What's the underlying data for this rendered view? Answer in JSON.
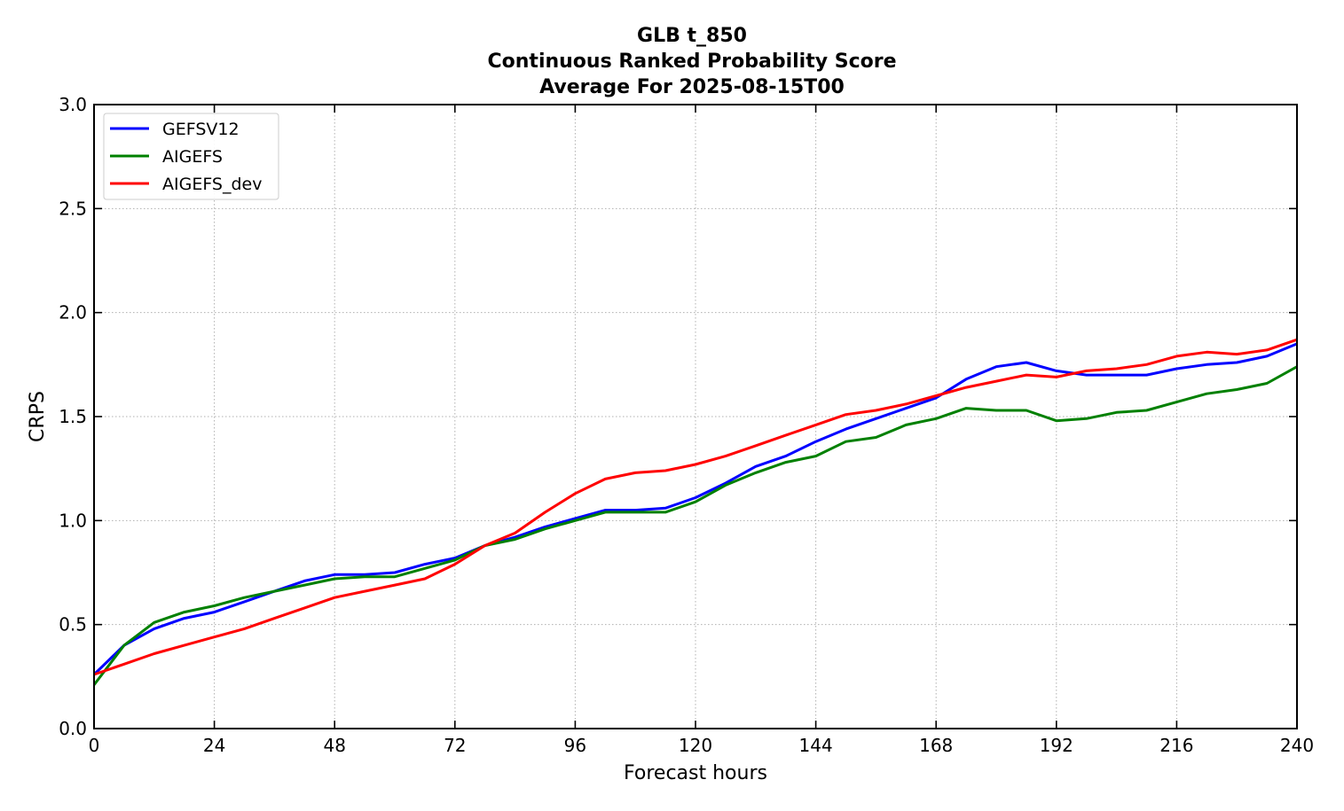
{
  "chart_data": {
    "type": "line",
    "title_lines": [
      "GLB t_850",
      "Continuous Ranked Probability Score",
      "Average For 2025-08-15T00"
    ],
    "xlabel": "Forecast hours",
    "ylabel": "CRPS",
    "xlim": [
      0,
      240
    ],
    "ylim": [
      0.0,
      3.0
    ],
    "xticks": [
      0,
      24,
      48,
      72,
      96,
      120,
      144,
      168,
      192,
      216,
      240
    ],
    "yticks": [
      0.0,
      0.5,
      1.0,
      1.5,
      2.0,
      2.5,
      3.0
    ],
    "ytick_labels": [
      "0.0",
      "0.5",
      "1.0",
      "1.5",
      "2.0",
      "2.5",
      "3.0"
    ],
    "grid": true,
    "legend_position": "top-left",
    "x": [
      0,
      6,
      12,
      18,
      24,
      30,
      36,
      42,
      48,
      54,
      60,
      66,
      72,
      78,
      84,
      90,
      96,
      102,
      108,
      114,
      120,
      126,
      132,
      138,
      144,
      150,
      156,
      162,
      168,
      174,
      180,
      186,
      192,
      198,
      204,
      210,
      216,
      222,
      228,
      234,
      240
    ],
    "series": [
      {
        "name": "GEFSV12",
        "color": "#0000ff",
        "values": [
          0.26,
          0.4,
          0.48,
          0.53,
          0.56,
          0.61,
          0.66,
          0.71,
          0.74,
          0.74,
          0.75,
          0.79,
          0.82,
          0.88,
          0.92,
          0.97,
          1.01,
          1.05,
          1.05,
          1.06,
          1.11,
          1.18,
          1.26,
          1.31,
          1.38,
          1.44,
          1.49,
          1.54,
          1.59,
          1.68,
          1.74,
          1.76,
          1.72,
          1.7,
          1.7,
          1.7,
          1.73,
          1.75,
          1.76,
          1.79,
          1.85
        ]
      },
      {
        "name": "AIGEFS",
        "color": "#008000",
        "values": [
          0.21,
          0.4,
          0.51,
          0.56,
          0.59,
          0.63,
          0.66,
          0.69,
          0.72,
          0.73,
          0.73,
          0.77,
          0.81,
          0.88,
          0.91,
          0.96,
          1.0,
          1.04,
          1.04,
          1.04,
          1.09,
          1.17,
          1.23,
          1.28,
          1.31,
          1.38,
          1.4,
          1.46,
          1.49,
          1.54,
          1.53,
          1.53,
          1.48,
          1.49,
          1.52,
          1.53,
          1.57,
          1.61,
          1.63,
          1.66,
          1.74
        ]
      },
      {
        "name": "AIGEFS_dev",
        "color": "#ff0000",
        "values": [
          0.26,
          0.31,
          0.36,
          0.4,
          0.44,
          0.48,
          0.53,
          0.58,
          0.63,
          0.66,
          0.69,
          0.72,
          0.79,
          0.88,
          0.94,
          1.04,
          1.13,
          1.2,
          1.23,
          1.24,
          1.27,
          1.31,
          1.36,
          1.41,
          1.46,
          1.51,
          1.53,
          1.56,
          1.6,
          1.64,
          1.67,
          1.7,
          1.69,
          1.72,
          1.73,
          1.75,
          1.79,
          1.81,
          1.8,
          1.82,
          1.87
        ]
      }
    ]
  }
}
